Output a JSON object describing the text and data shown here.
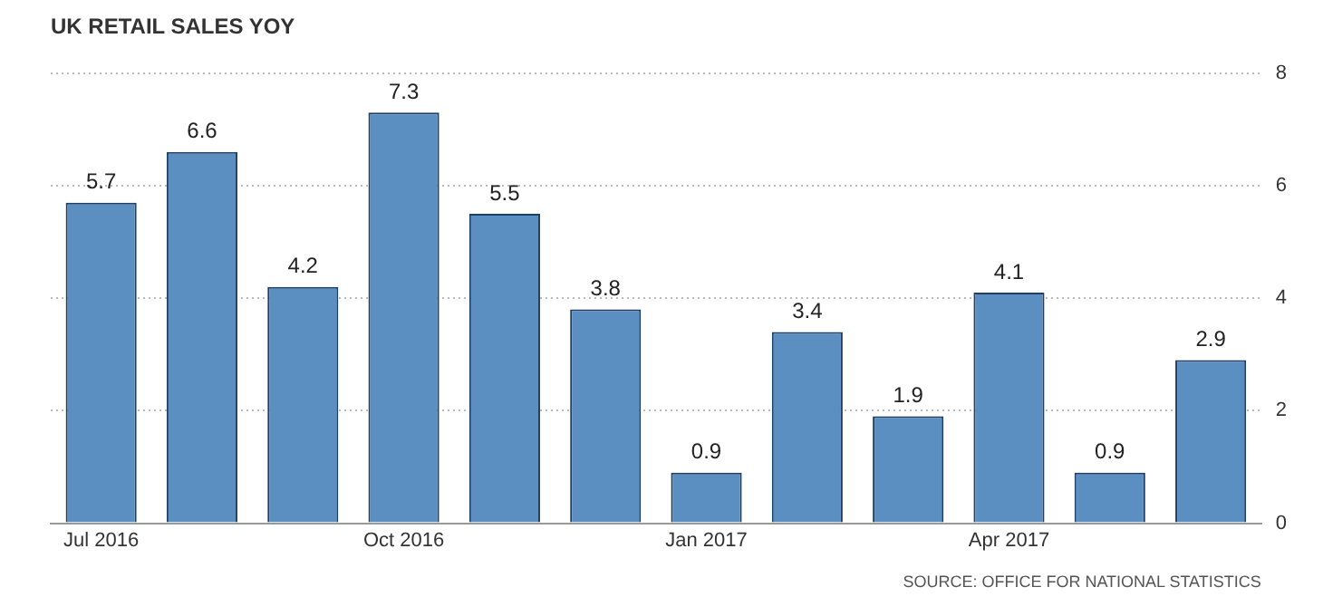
{
  "chart_data": {
    "type": "bar",
    "title": "UK RETAIL SALES YOY",
    "categories": [
      "Jul 2016",
      null,
      null,
      "Oct 2016",
      null,
      null,
      "Jan 2017",
      null,
      null,
      "Apr 2017",
      null,
      null
    ],
    "values": [
      5.7,
      6.6,
      4.2,
      7.3,
      5.5,
      3.8,
      0.9,
      3.4,
      1.9,
      4.1,
      0.9,
      2.9
    ],
    "color": "#5b8fc2",
    "ylim": [
      0,
      8
    ],
    "yticks": [
      0,
      2,
      4,
      6,
      8
    ],
    "grid": "y",
    "data_labels": true,
    "annotations": [
      "SOURCE: OFFICE FOR NATIONAL STATISTICS"
    ]
  }
}
